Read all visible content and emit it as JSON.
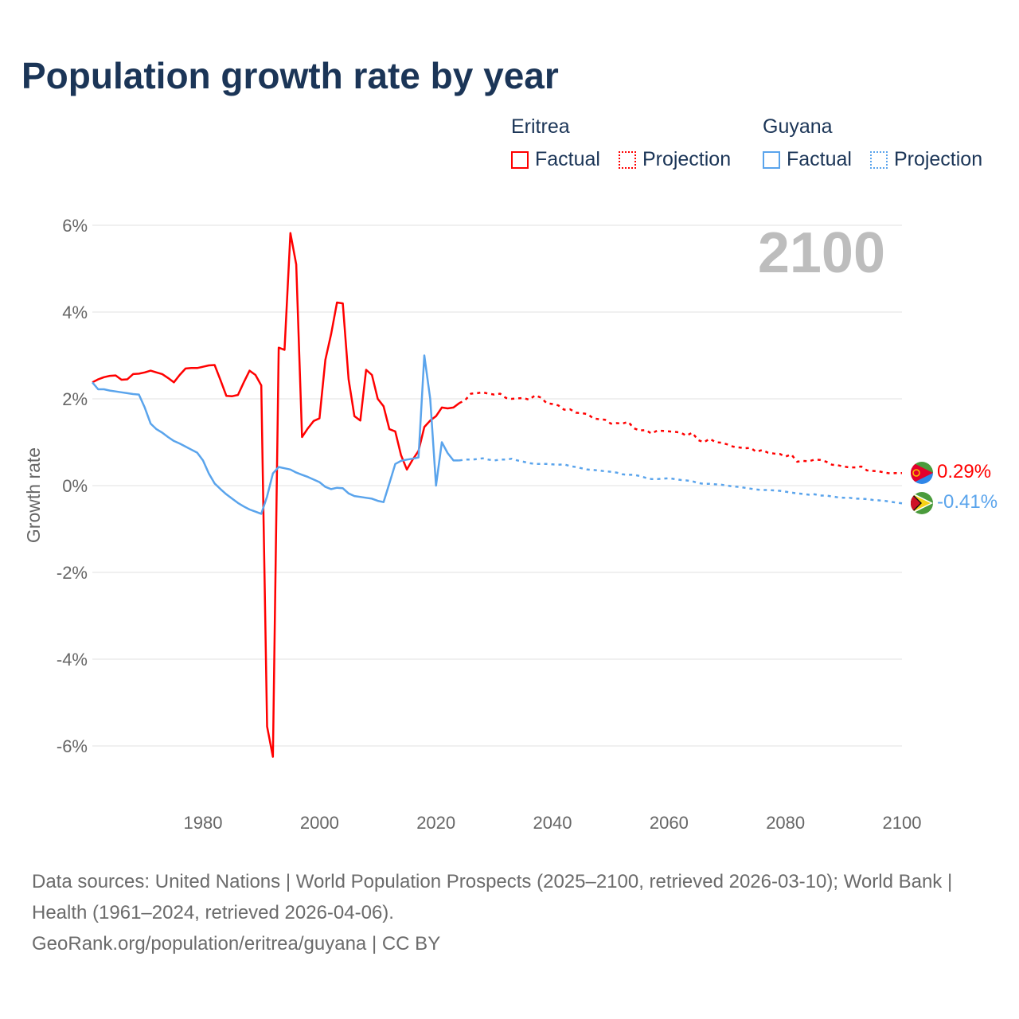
{
  "title": "Population growth rate by year",
  "legend": {
    "groups": [
      {
        "name": "Eritrea",
        "color": "#ff0000",
        "factual_label": "Factual",
        "projection_label": "Projection"
      },
      {
        "name": "Guyana",
        "color": "#5aa4ec",
        "factual_label": "Factual",
        "projection_label": "Projection"
      }
    ]
  },
  "current_year_label": "2100",
  "end_labels": {
    "eritrea": "0.29%",
    "guyana": "-0.41%"
  },
  "flags": {
    "eritrea": "eritrea-flag-icon",
    "guyana": "guyana-flag-icon"
  },
  "footer": {
    "line1": "Data sources: United Nations | World Population Prospects (2025–2100, retrieved 2026-03-10); World Bank | Health (1961–2024, retrieved 2026-04-06).",
    "line2": "GeoRank.org/population/eritrea/guyana | CC BY"
  },
  "chart_data": {
    "type": "line",
    "title": "Population growth rate by year",
    "xlabel": "",
    "ylabel": "Growth rate",
    "xlim": [
      1961,
      2100
    ],
    "ylim": [
      -7.2,
      6
    ],
    "x_ticks": [
      1980,
      2000,
      2020,
      2040,
      2060,
      2080,
      2100
    ],
    "x_tick_labels": [
      "1980",
      "2000",
      "2020",
      "2040",
      "2060",
      "2080",
      "2100"
    ],
    "y_ticks": [
      6,
      4,
      2,
      0,
      -2,
      -4,
      -6
    ],
    "y_tick_labels": [
      "6%",
      "4%",
      "2%",
      "0%",
      "-2%",
      "-4%",
      "-6%"
    ],
    "grid": true,
    "legend_position": "top-right",
    "series": [
      {
        "name": "Eritrea",
        "kind": "Factual",
        "color": "#ff0000",
        "start_year": 1961,
        "values": [
          2.38,
          2.45,
          2.5,
          2.53,
          2.54,
          2.44,
          2.45,
          2.57,
          2.58,
          2.61,
          2.65,
          2.61,
          2.57,
          2.48,
          2.38,
          2.55,
          2.7,
          2.71,
          2.71,
          2.74,
          2.77,
          2.78,
          2.43,
          2.07,
          2.06,
          2.09,
          2.38,
          2.65,
          2.55,
          2.31,
          -5.55,
          -6.25,
          3.18,
          3.13,
          5.82,
          5.1,
          1.12,
          1.32,
          1.49,
          1.55,
          2.9,
          3.5,
          4.22,
          4.2,
          2.45,
          1.6,
          1.5,
          2.67,
          2.55,
          2.0,
          1.83,
          1.3,
          1.25,
          0.7,
          0.37,
          0.6,
          0.8,
          1.35,
          1.5,
          1.6,
          1.8,
          1.78,
          1.8,
          1.9
        ]
      },
      {
        "name": "Eritrea",
        "kind": "Projection",
        "color": "#ff0000",
        "start_year": 2024,
        "values": [
          1.9,
          1.97,
          2.12,
          2.13,
          2.15,
          2.12,
          2.1,
          2.12,
          2.02,
          2.0,
          2.01,
          2.02,
          1.98,
          2.08,
          2.03,
          1.9,
          1.88,
          1.85,
          1.75,
          1.76,
          1.68,
          1.67,
          1.65,
          1.55,
          1.53,
          1.52,
          1.43,
          1.44,
          1.43,
          1.47,
          1.32,
          1.27,
          1.28,
          1.2,
          1.27,
          1.26,
          1.25,
          1.24,
          1.22,
          1.15,
          1.22,
          1.05,
          1.0,
          1.08,
          1.0,
          0.99,
          0.95,
          0.9,
          0.88,
          0.86,
          0.87,
          0.78,
          0.82,
          0.76,
          0.74,
          0.73,
          0.67,
          0.72,
          0.55,
          0.57,
          0.56,
          0.6,
          0.59,
          0.55,
          0.48,
          0.47,
          0.44,
          0.42,
          0.42,
          0.44,
          0.35,
          0.34,
          0.33,
          0.3,
          0.28,
          0.29,
          0.29
        ]
      },
      {
        "name": "Guyana",
        "kind": "Factual",
        "color": "#5aa4ec",
        "start_year": 1961,
        "values": [
          2.38,
          2.22,
          2.22,
          2.19,
          2.17,
          2.15,
          2.13,
          2.11,
          2.1,
          1.8,
          1.43,
          1.3,
          1.22,
          1.12,
          1.03,
          0.97,
          0.9,
          0.83,
          0.76,
          0.58,
          0.28,
          0.05,
          -0.08,
          -0.2,
          -0.3,
          -0.4,
          -0.48,
          -0.55,
          -0.6,
          -0.65,
          -0.25,
          0.28,
          0.43,
          0.4,
          0.37,
          0.3,
          0.25,
          0.2,
          0.14,
          0.08,
          -0.03,
          -0.08,
          -0.05,
          -0.06,
          -0.18,
          -0.24,
          -0.26,
          -0.28,
          -0.3,
          -0.35,
          -0.38,
          0.05,
          0.5,
          0.57,
          0.6,
          0.62,
          0.65,
          3.0,
          2.0,
          0.0,
          1.0,
          0.75,
          0.58,
          0.58
        ]
      },
      {
        "name": "Guyana",
        "kind": "Projection",
        "color": "#5aa4ec",
        "start_year": 2024,
        "values": [
          0.58,
          0.6,
          0.6,
          0.61,
          0.63,
          0.6,
          0.58,
          0.6,
          0.6,
          0.62,
          0.58,
          0.55,
          0.52,
          0.5,
          0.5,
          0.5,
          0.49,
          0.48,
          0.49,
          0.45,
          0.43,
          0.4,
          0.37,
          0.36,
          0.35,
          0.33,
          0.32,
          0.3,
          0.26,
          0.25,
          0.25,
          0.22,
          0.18,
          0.15,
          0.15,
          0.16,
          0.17,
          0.15,
          0.13,
          0.12,
          0.1,
          0.06,
          0.04,
          0.04,
          0.03,
          0.02,
          0.0,
          -0.02,
          -0.03,
          -0.05,
          -0.07,
          -0.09,
          -0.1,
          -0.1,
          -0.11,
          -0.12,
          -0.14,
          -0.16,
          -0.18,
          -0.19,
          -0.21,
          -0.2,
          -0.23,
          -0.23,
          -0.25,
          -0.27,
          -0.28,
          -0.28,
          -0.3,
          -0.3,
          -0.31,
          -0.33,
          -0.34,
          -0.35,
          -0.37,
          -0.39,
          -0.41
        ]
      }
    ]
  }
}
